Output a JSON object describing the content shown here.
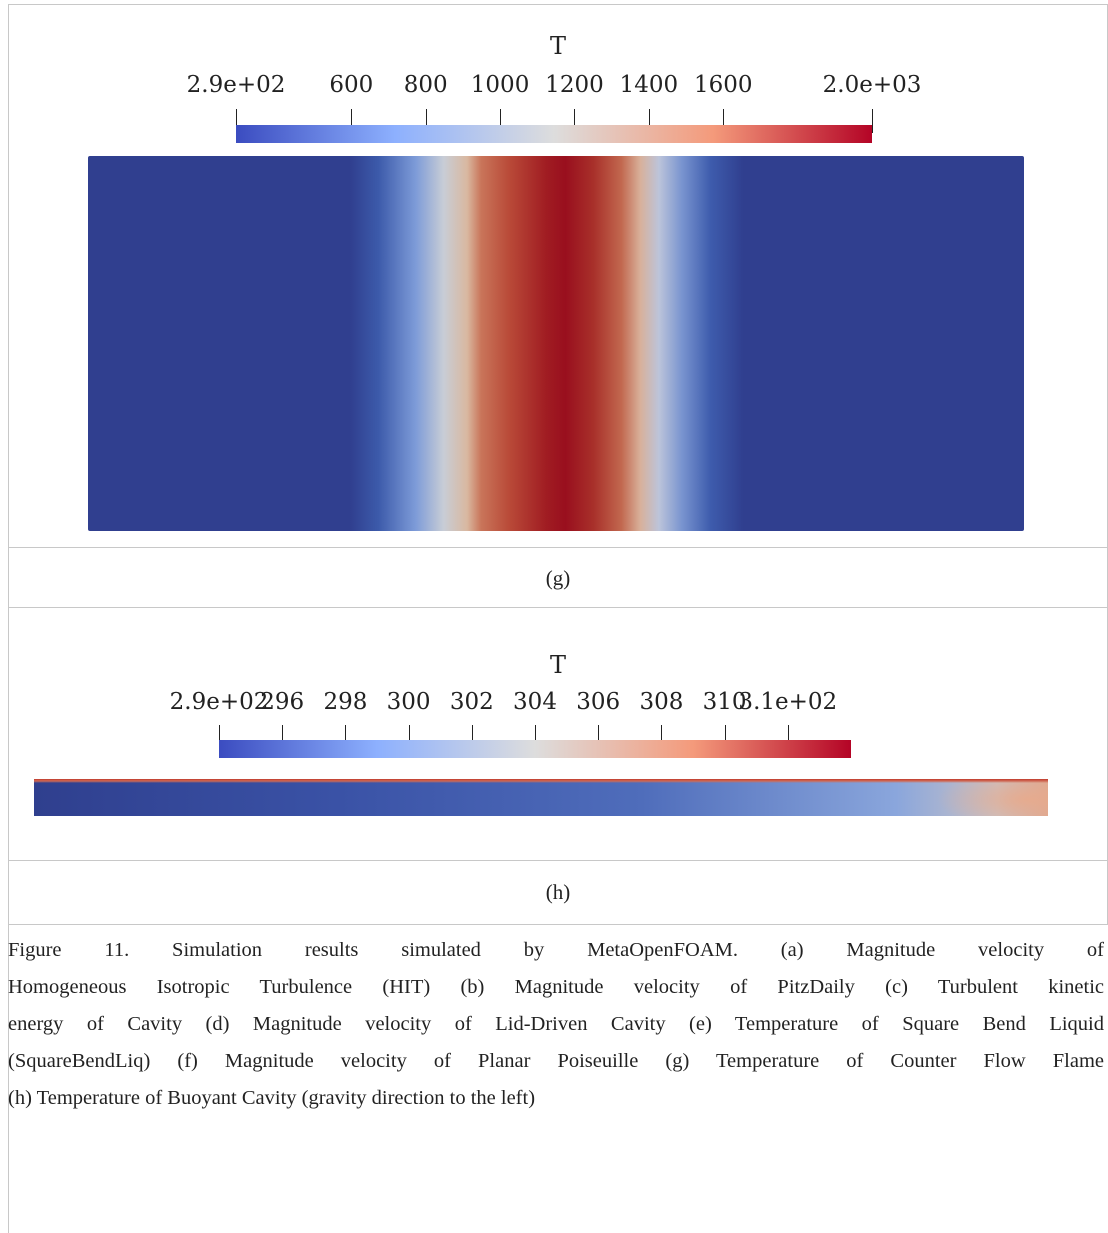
{
  "figure": {
    "panel_g": {
      "field": "T",
      "ticks": [
        "2.9e+02",
        "600",
        "800",
        "1000",
        "1200",
        "1400",
        "1600",
        "2.0e+03"
      ],
      "tick_values": [
        290,
        600,
        800,
        1000,
        1200,
        1400,
        1600,
        2000
      ],
      "range": [
        290,
        2000
      ],
      "label": "(g)",
      "colormap": [
        "#3b4cc0",
        "#8db0fe",
        "#dddddd",
        "#f49a7b",
        "#b40426"
      ]
    },
    "panel_h": {
      "field": "T",
      "ticks": [
        "2.9e+02",
        "296",
        "298",
        "300",
        "302",
        "304",
        "306",
        "308",
        "310",
        "3.1e+02"
      ],
      "tick_values": [
        294,
        296,
        298,
        300,
        302,
        304,
        306,
        308,
        310,
        312
      ],
      "range": [
        294,
        314
      ],
      "label": "(h)",
      "colormap": [
        "#3b4cc0",
        "#8db0fe",
        "#dddddd",
        "#f49a7b",
        "#b40426"
      ]
    },
    "caption_lines": [
      "Figure 11. Simulation results simulated by MetaOpenFOAM. (a) Magnitude velocity of",
      "Homogeneous Isotropic Turbulence (HIT) (b) Magnitude velocity of PitzDaily (c) Turbulent kinetic",
      "energy of Cavity (d) Magnitude velocity of Lid-Driven Cavity (e) Temperature of Square Bend Liquid",
      "(SquareBendLiq) (f) Magnitude velocity of Planar Poiseuille (g) Temperature of Counter Flow Flame",
      "(h) Temperature of Buoyant Cavity (gravity direction to the left)"
    ]
  }
}
